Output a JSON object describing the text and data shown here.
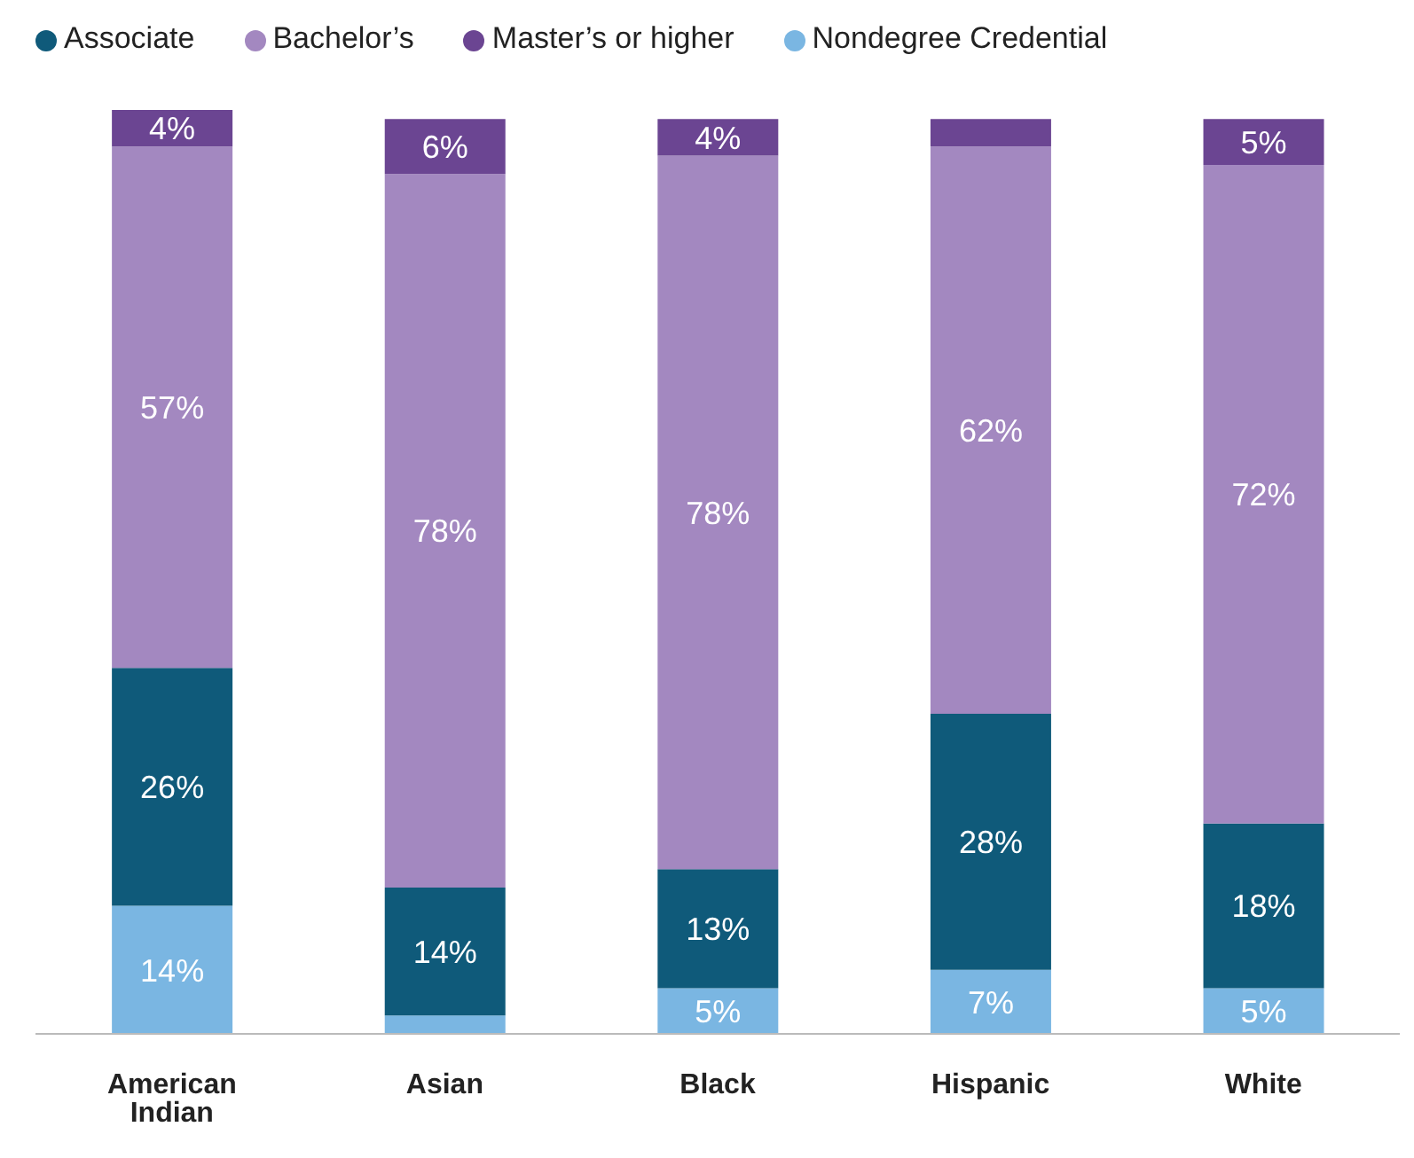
{
  "chart_data": {
    "type": "bar",
    "stacked": true,
    "legend": "top left",
    "categories": [
      "American Indian",
      "Asian",
      "Black",
      "Hispanic",
      "White"
    ],
    "series": [
      {
        "name": "Nondegree Credential",
        "color": "#7ab6e2",
        "values": [
          14,
          2,
          5,
          7,
          5
        ],
        "value_labels": [
          "14%",
          null,
          "5%",
          "7%",
          "5%"
        ]
      },
      {
        "name": "Associate",
        "color": "#0f5a7a",
        "values": [
          26,
          14,
          13,
          28,
          18
        ],
        "value_labels": [
          "26%",
          "14%",
          "13%",
          "28%",
          "18%"
        ]
      },
      {
        "name": "Bachelor’s",
        "color": "#a388c0",
        "values": [
          57,
          78,
          78,
          62,
          72
        ],
        "value_labels": [
          "57%",
          "78%",
          "78%",
          "62%",
          "72%"
        ]
      },
      {
        "name": "Master’s or higher",
        "color": "#6b4592",
        "values": [
          4,
          6,
          4,
          3,
          5
        ],
        "value_labels": [
          "4%",
          "6%",
          "4%",
          null,
          "5%"
        ]
      }
    ]
  }
}
